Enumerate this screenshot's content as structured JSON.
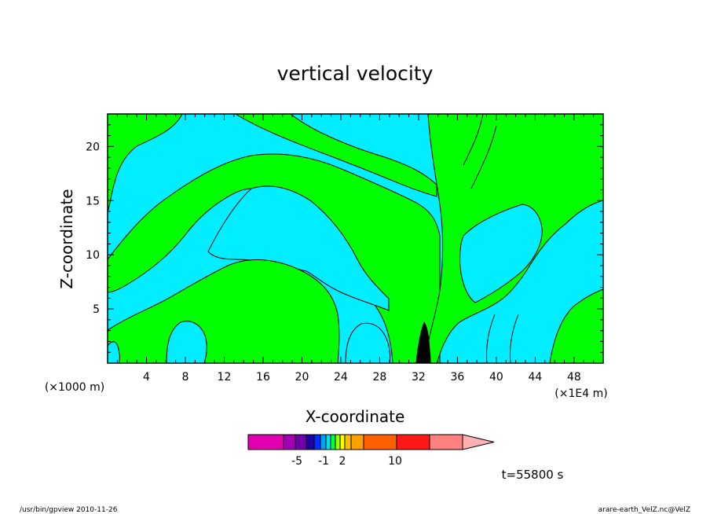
{
  "chart_data": {
    "type": "heatmap",
    "title": "vertical velocity",
    "xlabel": "X-coordinate",
    "ylabel": "Z-coordinate",
    "x_unit_left": "(×1000 m)",
    "x_unit_right": "(×1E4 m)",
    "xlim": [
      0,
      51
    ],
    "ylim": [
      0,
      23
    ],
    "x_ticks": [
      4,
      8,
      12,
      16,
      20,
      24,
      28,
      32,
      36,
      40,
      44,
      48
    ],
    "y_ticks": [
      5,
      10,
      15,
      20
    ],
    "grid": false,
    "colorbar": {
      "colors": [
        "#e000b0",
        "#a000b0",
        "#7000a8",
        "#2000a0",
        "#0030ff",
        "#00a0ff",
        "#00e0e0",
        "#00ff40",
        "#a0ff00",
        "#ffff00",
        "#ffc000",
        "#ffa000",
        "#ff6000",
        "#ff1818",
        "#ff8080",
        "#ffb0b0"
      ],
      "tick_labels": [
        "-5",
        "-1",
        "2",
        "10"
      ]
    },
    "field_colors": {
      "negative": "#00eeff",
      "positive": "#00ff00",
      "strong": "#000000"
    },
    "regions": [
      {
        "sign": "positive",
        "band": "upper-left",
        "x": [
          0,
          5
        ],
        "y": [
          14,
          23
        ]
      },
      {
        "sign": "negative",
        "band": "upper arc",
        "x": [
          2,
          28
        ],
        "y": [
          10,
          22
        ]
      },
      {
        "sign": "positive",
        "band": "arch",
        "x": [
          10,
          34
        ],
        "y": [
          3,
          19
        ]
      },
      {
        "sign": "negative",
        "band": "dome",
        "x": [
          12,
          30
        ],
        "y": [
          8,
          16
        ]
      },
      {
        "sign": "positive",
        "band": "lower-left",
        "x": [
          0,
          24
        ],
        "y": [
          0,
          11
        ]
      },
      {
        "sign": "negative",
        "band": "lower",
        "x": [
          5,
          32
        ],
        "y": [
          0,
          5
        ]
      },
      {
        "sign": "positive",
        "band": "upper-right",
        "x": [
          32,
          51
        ],
        "y": [
          9,
          23
        ]
      },
      {
        "sign": "negative",
        "band": "lower-right",
        "x": [
          34,
          51
        ],
        "y": [
          0,
          14
        ]
      }
    ]
  },
  "time_label": "t=55800 s",
  "footer_left": "/usr/bin/gpview   2010-11-26",
  "footer_right": "arare-earth_VelZ.nc@VelZ"
}
